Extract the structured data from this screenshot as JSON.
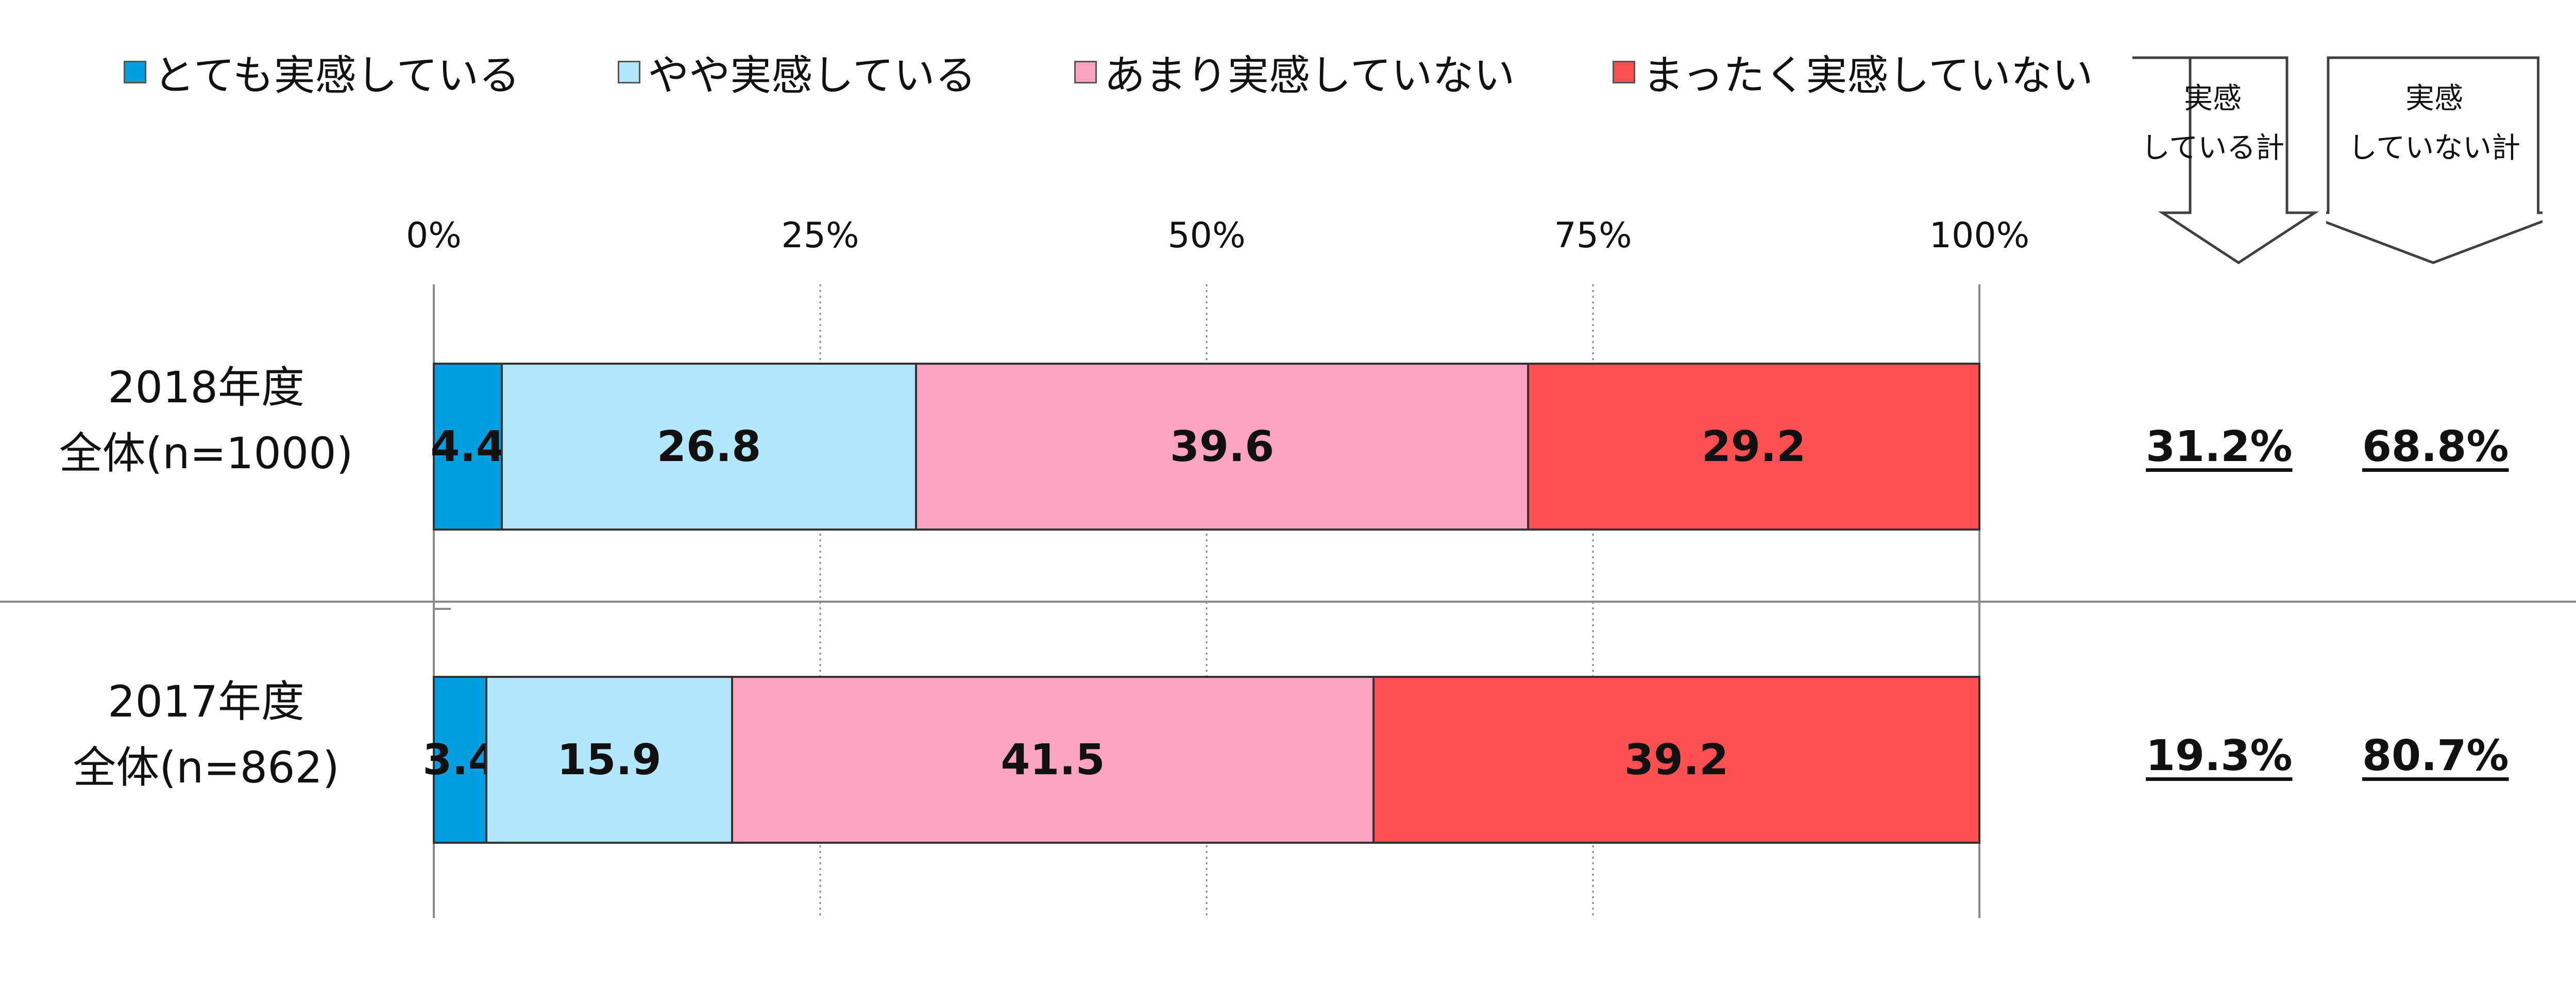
{
  "chart_data": {
    "type": "bar",
    "orientation": "horizontal",
    "stacked": true,
    "x_ticks": [
      "0%",
      "25%",
      "50%",
      "75%",
      "100%"
    ],
    "xlim": [
      0,
      100
    ],
    "grid": "vertical dotted",
    "legend_position": "top",
    "categories": [
      {
        "line1": "2018年度",
        "line2": "全体(n=1000)"
      },
      {
        "line1": "2017年度",
        "line2": "全体(n=862)"
      }
    ],
    "series": [
      {
        "name": "とても実感している",
        "color": "#009fe0",
        "values": [
          4.4,
          3.4
        ]
      },
      {
        "name": "やや実感している",
        "color": "#b3e7fb",
        "values": [
          26.8,
          15.9
        ]
      },
      {
        "name": "あまり実感していない",
        "color": "#fca4c1",
        "values": [
          39.6,
          41.5
        ]
      },
      {
        "name": "まったく実感していない",
        "color": "#fe5050",
        "values": [
          29.2,
          39.2
        ]
      }
    ],
    "data_labels": [
      [
        "4.4",
        "26.8",
        "39.6",
        "29.2"
      ],
      [
        "3.4",
        "15.9",
        "41.5",
        "39.2"
      ]
    ],
    "totals": {
      "headers": [
        {
          "line1": "実感",
          "line2": "している計"
        },
        {
          "line1": "実感",
          "line2": "していない計"
        }
      ],
      "rows": [
        [
          "31.2%",
          "68.8%"
        ],
        [
          "19.3%",
          "80.7%"
        ]
      ]
    }
  }
}
